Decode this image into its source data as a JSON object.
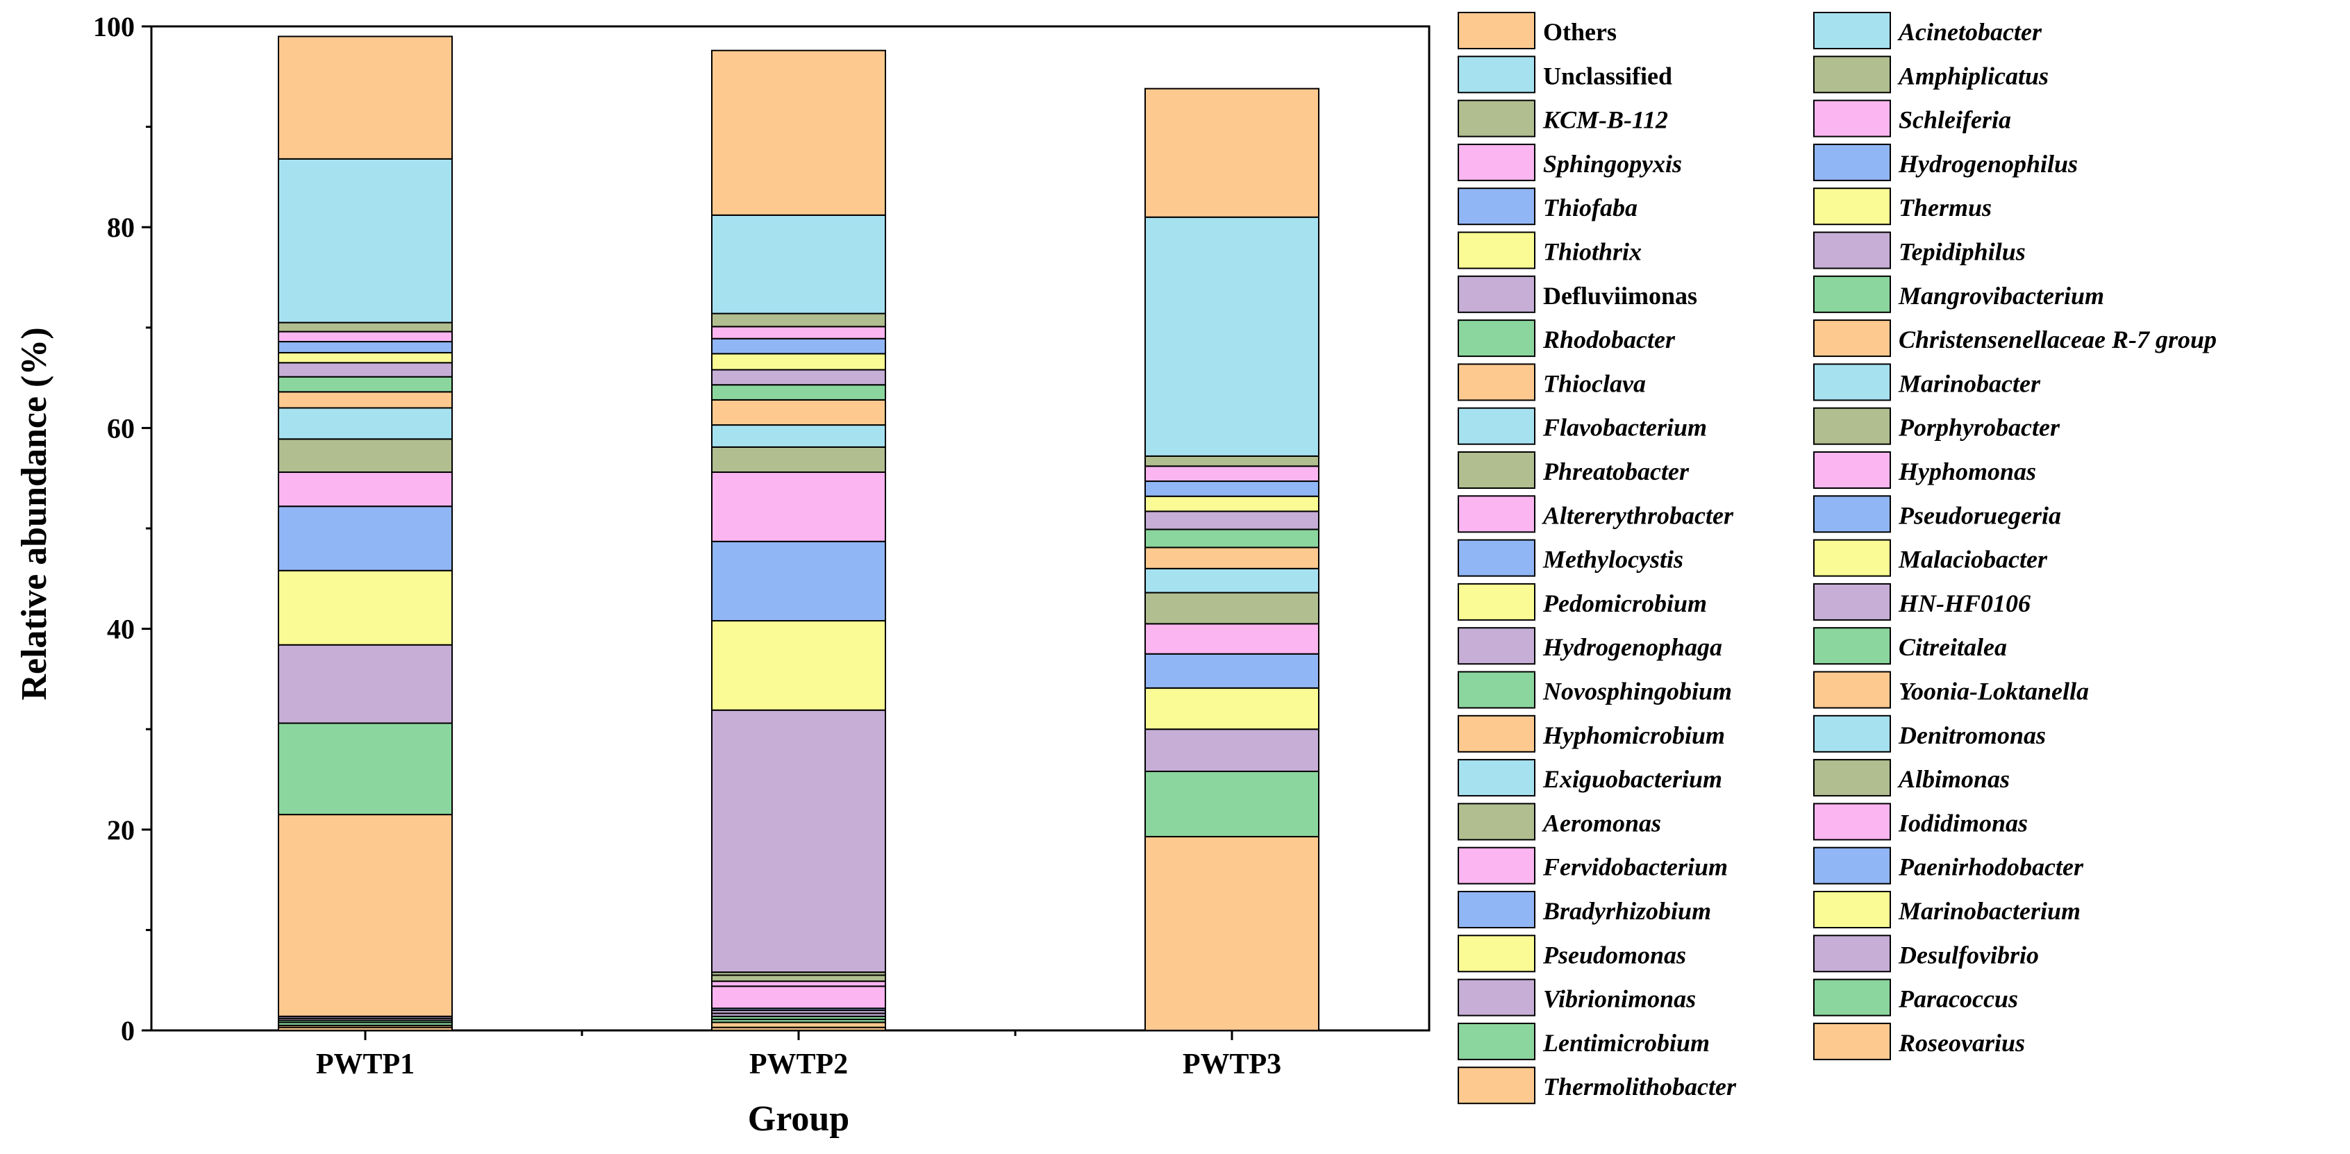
{
  "chart_data": {
    "type": "bar",
    "stacked": true,
    "xlabel": "Group",
    "ylabel": "Relative abundance (%)",
    "ylim": [
      0,
      100
    ],
    "yticks": [
      0,
      20,
      40,
      60,
      80,
      100
    ],
    "categories": [
      "PWTP1",
      "PWTP2",
      "PWTP3"
    ],
    "legend_placement": "right",
    "colors": {
      "peach": "#FDC98F",
      "lightblue": "#A6E1F0",
      "olive": "#B1BE8F",
      "pink": "#FBB5F0",
      "blue": "#91B6F5",
      "yellow": "#FBFB95",
      "lavender": "#C6AED6",
      "green": "#8BD69E",
      "axis": "#000000"
    },
    "series": [
      {
        "name": "Thermolithobacter",
        "italic": true,
        "color": "#FDC98F",
        "values": [
          0.3,
          0.3,
          0.0
        ]
      },
      {
        "name": "Roseovarius",
        "italic": true,
        "color": "#FDC98F",
        "values": [
          0.2,
          0.5,
          0.0
        ]
      },
      {
        "name": "Lentimicrobium",
        "italic": true,
        "color": "#8BD69E",
        "values": [
          0.3,
          0.3,
          0.0
        ]
      },
      {
        "name": "Paracoccus",
        "italic": true,
        "color": "#8BD69E",
        "values": [
          0.2,
          0.3,
          0.0
        ]
      },
      {
        "name": "Vibrionimonas",
        "italic": true,
        "color": "#C6AED6",
        "values": [
          0.2,
          0.3,
          0.0
        ]
      },
      {
        "name": "Desulfovibrio",
        "italic": true,
        "color": "#C6AED6",
        "values": [
          0.2,
          0.3,
          0.0
        ]
      },
      {
        "name": "Pseudomonas",
        "italic": true,
        "color": "#FBFB95",
        "values": [
          0.0,
          0.0,
          0.0
        ]
      },
      {
        "name": "Marinobacterium",
        "italic": true,
        "color": "#FBFB95",
        "values": [
          0.0,
          0.0,
          0.0
        ]
      },
      {
        "name": "Bradyrhizobium",
        "italic": true,
        "color": "#91B6F5",
        "values": [
          0.0,
          0.0,
          0.0
        ]
      },
      {
        "name": "Paenirhodobacter",
        "italic": true,
        "color": "#91B6F5",
        "values": [
          0.0,
          0.2,
          0.0
        ]
      },
      {
        "name": "Fervidobacterium",
        "italic": true,
        "color": "#FBB5F0",
        "values": [
          0.0,
          2.2,
          0.0
        ]
      },
      {
        "name": "Iodidimonas",
        "italic": true,
        "color": "#FBB5F0",
        "values": [
          0.0,
          0.5,
          0.0
        ]
      },
      {
        "name": "Aeromonas",
        "italic": true,
        "color": "#B1BE8F",
        "values": [
          0.0,
          0.6,
          0.0
        ]
      },
      {
        "name": "Albimonas",
        "italic": true,
        "color": "#B1BE8F",
        "values": [
          0.0,
          0.3,
          0.0
        ]
      },
      {
        "name": "Exiguobacterium",
        "italic": true,
        "color": "#A6E1F0",
        "values": [
          0.0,
          0.0,
          0.0
        ]
      },
      {
        "name": "Denitromonas",
        "italic": true,
        "color": "#A6E1F0",
        "values": [
          0.0,
          0.0,
          0.0
        ]
      },
      {
        "name": "Hyphomicrobium",
        "italic": true,
        "color": "#FDC98F",
        "values": [
          20.1,
          0.0,
          19.3
        ]
      },
      {
        "name": "Yoonia-Loktanella",
        "italic": true,
        "color": "#FDC98F",
        "values": [
          0.0,
          0.0,
          0.0
        ]
      },
      {
        "name": "Novosphingobium",
        "italic": true,
        "color": "#8BD69E",
        "values": [
          9.1,
          0.0,
          6.5
        ]
      },
      {
        "name": "Citreitalea",
        "italic": true,
        "color": "#8BD69E",
        "values": [
          0.0,
          0.0,
          0.0
        ]
      },
      {
        "name": "Hydrogenophaga",
        "italic": true,
        "color": "#C6AED6",
        "values": [
          7.8,
          26.1,
          4.2
        ]
      },
      {
        "name": "HN-HF0106",
        "italic": true,
        "color": "#C6AED6",
        "values": [
          0.0,
          0.0,
          0.0
        ]
      },
      {
        "name": "Pedomicrobium",
        "italic": true,
        "color": "#FBFB95",
        "values": [
          7.4,
          8.9,
          4.1
        ]
      },
      {
        "name": "Malaciobacter",
        "italic": true,
        "color": "#FBFB95",
        "values": [
          0.0,
          0.0,
          0.0
        ]
      },
      {
        "name": "Methylocystis",
        "italic": true,
        "color": "#91B6F5",
        "values": [
          6.4,
          7.9,
          3.4
        ]
      },
      {
        "name": "Pseudoruegeria",
        "italic": true,
        "color": "#91B6F5",
        "values": [
          0.0,
          0.0,
          0.0
        ]
      },
      {
        "name": "Altererythrobacter",
        "italic": true,
        "color": "#FBB5F0",
        "values": [
          3.4,
          6.9,
          3.0
        ]
      },
      {
        "name": "Hyphomonas",
        "italic": true,
        "color": "#FBB5F0",
        "values": [
          0.0,
          0.0,
          0.0
        ]
      },
      {
        "name": "Phreatobacter",
        "italic": true,
        "color": "#B1BE8F",
        "values": [
          3.3,
          2.5,
          3.1
        ]
      },
      {
        "name": "Porphyrobacter",
        "italic": true,
        "color": "#B1BE8F",
        "values": [
          0.0,
          0.0,
          0.0
        ]
      },
      {
        "name": "Flavobacterium",
        "italic": true,
        "color": "#A6E1F0",
        "values": [
          3.1,
          2.2,
          2.4
        ]
      },
      {
        "name": "Marinobacter",
        "italic": true,
        "color": "#A6E1F0",
        "values": [
          0.0,
          0.0,
          0.0
        ]
      },
      {
        "name": "Thioclava",
        "italic": true,
        "color": "#FDC98F",
        "values": [
          1.6,
          2.5,
          2.1
        ]
      },
      {
        "name": "Christensenellaceae R-7 group",
        "italic": true,
        "color": "#FDC98F",
        "values": [
          0.0,
          0.0,
          0.0
        ]
      },
      {
        "name": "Rhodobacter",
        "italic": true,
        "color": "#8BD69E",
        "values": [
          1.5,
          1.5,
          1.8
        ]
      },
      {
        "name": "Mangrovibacterium",
        "italic": true,
        "color": "#8BD69E",
        "values": [
          0.0,
          0.0,
          0.0
        ]
      },
      {
        "name": "Defluviimonas",
        "italic": false,
        "color": "#C6AED6",
        "values": [
          1.4,
          1.5,
          1.8
        ]
      },
      {
        "name": "Tepidiphilus",
        "italic": true,
        "color": "#C6AED6",
        "values": [
          0.0,
          0.0,
          0.0
        ]
      },
      {
        "name": "Thiothrix",
        "italic": true,
        "color": "#FBFB95",
        "values": [
          1.0,
          1.6,
          1.5
        ]
      },
      {
        "name": "Thermus",
        "italic": true,
        "color": "#FBFB95",
        "values": [
          0.0,
          0.0,
          0.0
        ]
      },
      {
        "name": "Thiofaba",
        "italic": true,
        "color": "#91B6F5",
        "values": [
          1.1,
          1.5,
          1.5
        ]
      },
      {
        "name": "Hydrogenophilus",
        "italic": true,
        "color": "#91B6F5",
        "values": [
          0.0,
          0.0,
          0.0
        ]
      },
      {
        "name": "Sphingopyxis",
        "italic": true,
        "color": "#FBB5F0",
        "values": [
          1.0,
          1.2,
          1.5
        ]
      },
      {
        "name": "Schleiferia",
        "italic": true,
        "color": "#FBB5F0",
        "values": [
          0.0,
          0.0,
          0.0
        ]
      },
      {
        "name": "KCM-B-112",
        "italic": true,
        "color": "#B1BE8F",
        "values": [
          0.9,
          1.3,
          1.0
        ]
      },
      {
        "name": "Amphiplicatus",
        "italic": true,
        "color": "#B1BE8F",
        "values": [
          0.0,
          0.0,
          0.0
        ]
      },
      {
        "name": "Unclassified",
        "italic": false,
        "color": "#A6E1F0",
        "values": [
          16.3,
          9.8,
          23.8
        ]
      },
      {
        "name": "Acinetobacter",
        "italic": true,
        "color": "#A6E1F0",
        "values": [
          0.0,
          0.0,
          0.0
        ]
      },
      {
        "name": "Others",
        "italic": false,
        "color": "#FDC98F",
        "values": [
          12.2,
          16.4,
          12.8
        ]
      }
    ],
    "legend_left": [
      "Others",
      "Unclassified",
      "KCM-B-112",
      "Sphingopyxis",
      "Thiofaba",
      "Thiothrix",
      "Defluviimonas",
      "Rhodobacter",
      "Thioclava",
      "Flavobacterium",
      "Phreatobacter",
      "Altererythrobacter",
      "Methylocystis",
      "Pedomicrobium",
      "Hydrogenophaga",
      "Novosphingobium",
      "Hyphomicrobium",
      "Exiguobacterium",
      "Aeromonas",
      "Fervidobacterium",
      "Bradyrhizobium",
      "Pseudomonas",
      "Vibrionimonas",
      "Lentimicrobium",
      "Thermolithobacter"
    ],
    "legend_right": [
      "Acinetobacter",
      "Amphiplicatus",
      "Schleiferia",
      "Hydrogenophilus",
      "Thermus",
      "Tepidiphilus",
      "Mangrovibacterium",
      "Christensenellaceae R-7 group",
      "Marinobacter",
      "Porphyrobacter",
      "Hyphomonas",
      "Pseudoruegeria",
      "Malaciobacter",
      "HN-HF0106",
      "Citreitalea",
      "Yoonia-Loktanella",
      "Denitromonas",
      "Albimonas",
      "Iodidimonas",
      "Paenirhodobacter",
      "Marinobacterium",
      "Desulfovibrio",
      "Paracoccus",
      "Roseovarius"
    ]
  }
}
